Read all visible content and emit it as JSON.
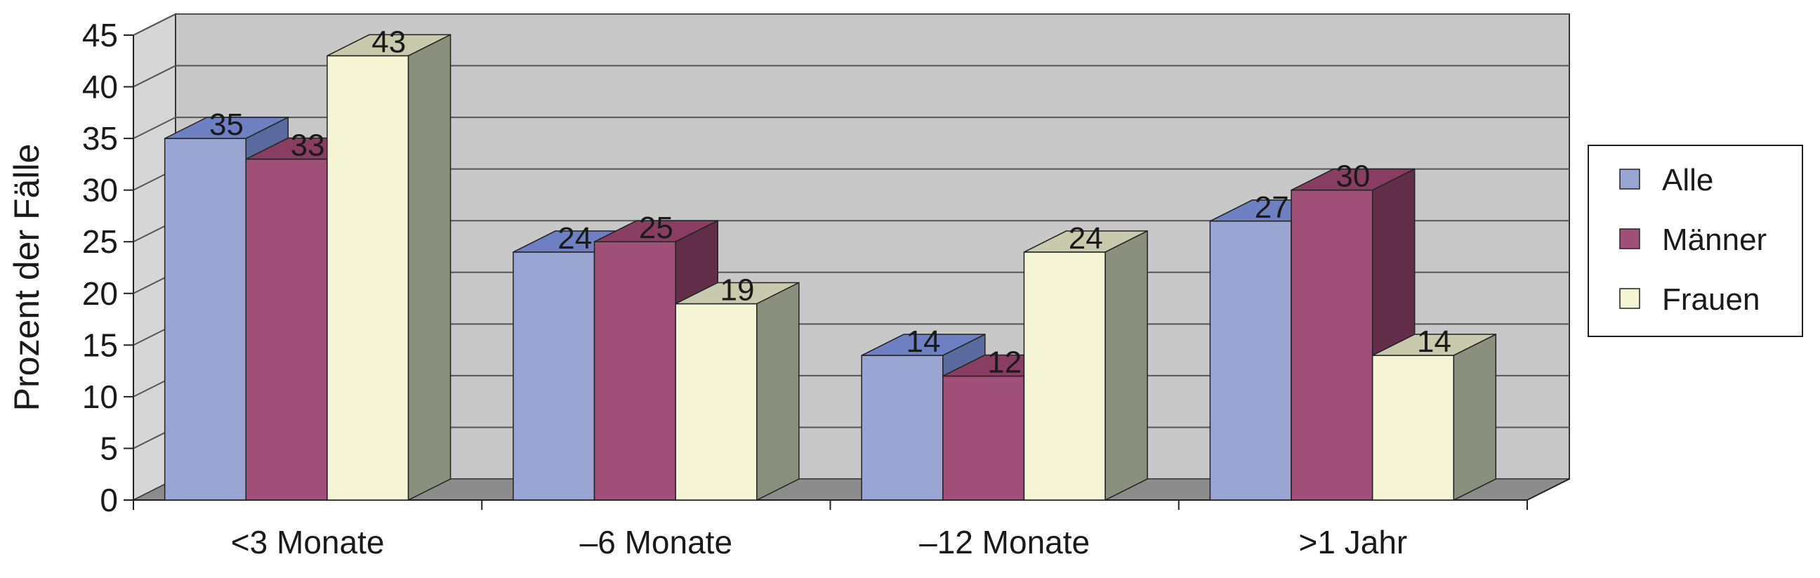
{
  "chart_data": {
    "type": "bar",
    "categories": [
      "<3 Monate",
      "–6 Monate",
      "–12 Monate",
      ">1 Jahr"
    ],
    "series": [
      {
        "name": "Alle",
        "values": [
          35,
          24,
          14,
          27
        ],
        "color": "#99a6d4",
        "top": "#6f80c2",
        "side": "#5b6a9e"
      },
      {
        "name": "Männer",
        "values": [
          33,
          25,
          12,
          30
        ],
        "color": "#a05078",
        "top": "#8a3d62",
        "side": "#632e4a"
      },
      {
        "name": "Frauen",
        "values": [
          43,
          19,
          24,
          14
        ],
        "color": "#f5f5d6",
        "top": "#c9c9ad",
        "side": "#8b8f7d"
      }
    ],
    "ylabel": "Prozent der Fälle",
    "ylim": [
      0,
      45
    ],
    "yticks": [
      0,
      5,
      10,
      15,
      20,
      25,
      30,
      35,
      40,
      45
    ],
    "grid": true,
    "legend_position": "right",
    "colors": {
      "wall": "#c8c8c8",
      "floor": "#8c8c8c",
      "grid": "#555555"
    }
  }
}
